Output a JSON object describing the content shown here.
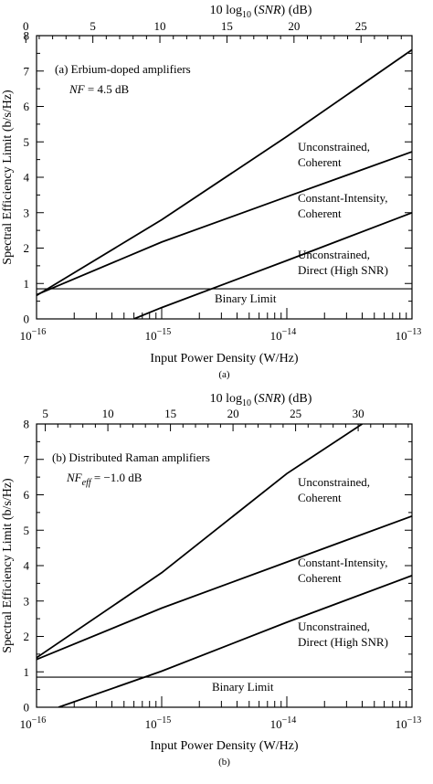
{
  "chart_data": [
    {
      "type": "line",
      "caption": "(a)",
      "top_axis_title_main": "10 log",
      "top_axis_title_sub": "10",
      "top_axis_title_var": "SNR",
      "top_axis_title_unit": " (dB)",
      "xlabel": "Input Power Density (W/Hz)",
      "ylabel": "Spectral Efficiency Limit (b/s/Hz)",
      "x_scale": "log",
      "xlim": [
        1e-16,
        1e-13
      ],
      "ylim": [
        0,
        8
      ],
      "x_tick_labels": [
        {
          "base": "10",
          "exp": "−16",
          "value": 1e-16
        },
        {
          "base": "10",
          "exp": "−15",
          "value": 1e-15
        },
        {
          "base": "10",
          "exp": "−14",
          "value": 1e-14
        },
        {
          "base": "10",
          "exp": "−13",
          "value": 1e-13
        }
      ],
      "y_ticks": [
        "0",
        "1",
        "2",
        "3",
        "4",
        "5",
        "6",
        "7",
        "8"
      ],
      "top_ticks": [
        "0",
        "5",
        "10",
        "15",
        "20",
        "25"
      ],
      "top_db_at_left": 0.8,
      "top_db_at_right": 28.8,
      "annotation_title": "(a) Erbium-doped amplifiers",
      "annotation_nf_var": "NF",
      "annotation_nf_sub": "",
      "annotation_nf_value": " = 4.5 dB",
      "series": [
        {
          "name": "Unconstrained, Coherent",
          "label_lines": [
            "Unconstrained,",
            "Coherent"
          ],
          "x": [
            1e-16,
            1e-15,
            1e-14,
            1e-13
          ],
          "y": [
            0.66,
            2.8,
            5.15,
            7.6
          ]
        },
        {
          "name": "Constant-Intensity, Coherent",
          "label_lines": [
            "Constant-Intensity,",
            "Coherent"
          ],
          "x": [
            1e-16,
            1e-15,
            1e-14,
            1e-13
          ],
          "y": [
            0.68,
            2.17,
            3.45,
            4.72
          ]
        },
        {
          "name": "Unconstrained, Direct (High SNR)",
          "label_lines": [
            "Unconstrained,",
            "Direct (High SNR)"
          ],
          "x": [
            6e-16,
            1e-15,
            1e-14,
            1e-13
          ],
          "y": [
            0.0,
            0.32,
            1.65,
            3.0
          ]
        }
      ],
      "reference_line": {
        "label": "Binary Limit",
        "y": 0.85
      }
    },
    {
      "type": "line",
      "caption": "(b)",
      "top_axis_title_main": "10 log",
      "top_axis_title_sub": "10",
      "top_axis_title_var": "SNR",
      "top_axis_title_unit": " (dB)",
      "xlabel": "Input Power Density (W/Hz)",
      "ylabel": "Spectral Efficiency Limit (b/s/Hz)",
      "x_scale": "log",
      "xlim": [
        1e-16,
        1e-13
      ],
      "ylim": [
        0,
        8
      ],
      "x_tick_labels": [
        {
          "base": "10",
          "exp": "−16",
          "value": 1e-16
        },
        {
          "base": "10",
          "exp": "−15",
          "value": 1e-15
        },
        {
          "base": "10",
          "exp": "−14",
          "value": 1e-14
        },
        {
          "base": "10",
          "exp": "−13",
          "value": 1e-13
        }
      ],
      "y_ticks": [
        "0",
        "1",
        "2",
        "3",
        "4",
        "5",
        "6",
        "7",
        "8"
      ],
      "top_ticks": [
        "5",
        "10",
        "15",
        "20",
        "25",
        "30"
      ],
      "top_db_at_left": 4.3,
      "top_db_at_right": 34.3,
      "annotation_title": "(b) Distributed Raman amplifiers",
      "annotation_nf_var": "NF",
      "annotation_nf_sub": "eff",
      "annotation_nf_value": " = −1.0 dB",
      "series": [
        {
          "name": "Unconstrained, Coherent",
          "label_lines": [
            "Unconstrained,",
            "Coherent"
          ],
          "x": [
            1e-16,
            1e-15,
            1e-14,
            4e-14
          ],
          "y": [
            1.4,
            3.8,
            6.6,
            8.0
          ]
        },
        {
          "name": "Constant-Intensity, Coherent",
          "label_lines": [
            "Constant-Intensity,",
            "Coherent"
          ],
          "x": [
            1e-16,
            1e-15,
            1e-14,
            1e-13
          ],
          "y": [
            1.35,
            2.8,
            4.1,
            5.4
          ]
        },
        {
          "name": "Unconstrained, Direct (High SNR)",
          "label_lines": [
            "Unconstrained,",
            "Direct (High SNR)"
          ],
          "x": [
            1.5e-16,
            1e-15,
            1e-14,
            1e-13
          ],
          "y": [
            0.0,
            1.02,
            2.4,
            3.72
          ]
        }
      ],
      "reference_line": {
        "label": "Binary Limit",
        "y": 0.85
      }
    }
  ]
}
